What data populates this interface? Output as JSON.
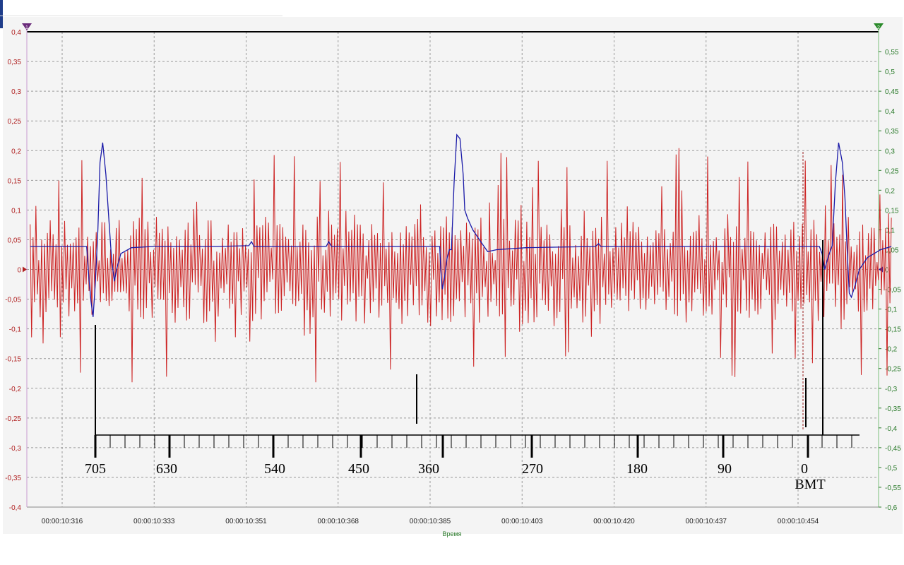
{
  "colors": {
    "series_red": "#cc2222",
    "series_blue": "#1a1aa8",
    "left_axis_text": "#b02020",
    "right_axis_text": "#2a7a2a",
    "grid": "#9a9a9a",
    "panel_bg": "#f4f4f4",
    "annotation": "#000000"
  },
  "icons": {
    "left_cursor": "down-triangle-marker-icon",
    "right_cursor": "down-triangle-marker-icon"
  },
  "chart_data": {
    "type": "line",
    "title": "",
    "xlabel": "Время",
    "ylabel_left": "",
    "ylabel_right": "",
    "grid": true,
    "x_ticks": [
      "00:00:10:316",
      "00:00:10:333",
      "00:00:10:351",
      "00:00:10:368",
      "00:00:10:385",
      "00:00:10:403",
      "00:00:10:420",
      "00:00:10:437",
      "00:00:10:454"
    ],
    "left_axis": {
      "ylim": [
        -0.4,
        0.4
      ],
      "ticks": [
        "0,4",
        "0,35",
        "0,3",
        "0,25",
        "0,2",
        "0,15",
        "0,1",
        "0,05",
        "0",
        "-0,05",
        "-0,1",
        "-0,15",
        "-0,2",
        "-0,25",
        "-0,3",
        "-0,35",
        "-0,4"
      ]
    },
    "right_axis": {
      "ylim": [
        -0.6,
        0.6
      ],
      "ticks": [
        "0,55",
        "0,5",
        "0,45",
        "0,4",
        "0,35",
        "0,3",
        "0,25",
        "0,2",
        "0,15",
        "0,1",
        "0,05",
        "0",
        "-0,05",
        "-0,1",
        "-0,15",
        "-0,2",
        "-0,25",
        "-0,3",
        "-0,35",
        "-0,4",
        "-0,45",
        "-0,5",
        "-0,55",
        "-0,6"
      ]
    },
    "series": [
      {
        "axis": "right",
        "color": "#1a1aa8",
        "points": [
          [
            10.31,
            0.058
          ],
          [
            10.318,
            0.058
          ],
          [
            10.3206,
            0.058
          ],
          [
            10.321,
            -0.02
          ],
          [
            10.3214,
            -0.08
          ],
          [
            10.3218,
            -0.12
          ],
          [
            10.3222,
            -0.04
          ],
          [
            10.3227,
            0.1
          ],
          [
            10.3231,
            0.27
          ],
          [
            10.3236,
            0.32
          ],
          [
            10.3242,
            0.24
          ],
          [
            10.3248,
            0.12
          ],
          [
            10.3253,
            0.02
          ],
          [
            10.3258,
            -0.03
          ],
          [
            10.3262,
            0.0
          ],
          [
            10.327,
            0.04
          ],
          [
            10.329,
            0.055
          ],
          [
            10.333,
            0.058
          ],
          [
            10.345,
            0.058
          ],
          [
            10.351,
            0.06
          ],
          [
            10.3515,
            0.07
          ],
          [
            10.352,
            0.058
          ],
          [
            10.3655,
            0.058
          ],
          [
            10.366,
            0.07
          ],
          [
            10.3665,
            0.058
          ],
          [
            10.3868,
            0.058
          ],
          [
            10.387,
            0.0
          ],
          [
            10.3873,
            -0.05
          ],
          [
            10.3877,
            -0.02
          ],
          [
            10.3882,
            0.03
          ],
          [
            10.3886,
            0.05
          ],
          [
            10.389,
            0.05
          ],
          [
            10.3895,
            0.22
          ],
          [
            10.39,
            0.34
          ],
          [
            10.3906,
            0.33
          ],
          [
            10.3912,
            0.24
          ],
          [
            10.3915,
            0.15
          ],
          [
            10.392,
            0.13
          ],
          [
            10.393,
            0.1
          ],
          [
            10.3945,
            0.07
          ],
          [
            10.3958,
            0.045
          ],
          [
            10.3975,
            0.05
          ],
          [
            10.403,
            0.055
          ],
          [
            10.416,
            0.058
          ],
          [
            10.4166,
            0.065
          ],
          [
            10.417,
            0.058
          ],
          [
            10.4505,
            0.058
          ],
          [
            10.458,
            0.058
          ],
          [
            10.4585,
            0.04
          ],
          [
            10.459,
            0.0
          ],
          [
            10.4596,
            0.03
          ],
          [
            10.4604,
            0.06
          ],
          [
            10.461,
            0.22
          ],
          [
            10.4616,
            0.32
          ],
          [
            10.4623,
            0.27
          ],
          [
            10.4628,
            0.18
          ],
          [
            10.4632,
            0.05
          ],
          [
            10.4636,
            -0.06
          ],
          [
            10.464,
            -0.07
          ],
          [
            10.4647,
            -0.04
          ],
          [
            10.4655,
            0.0
          ],
          [
            10.467,
            0.03
          ],
          [
            10.4695,
            0.05
          ],
          [
            10.4715,
            0.058
          ]
        ]
      },
      {
        "axis": "left",
        "color": "#cc2222",
        "x_range": [
          10.31,
          10.4715
        ],
        "sample_count": 600,
        "band": [
          -0.1,
          0.1
        ],
        "extreme_range": [
          -0.19,
          0.22
        ],
        "points": []
      }
    ],
    "crank_scale": {
      "labels": [
        "705",
        "630",
        "540",
        "450",
        "360",
        "270",
        "180",
        "90",
        "0"
      ],
      "sublabel": "BMT"
    }
  }
}
